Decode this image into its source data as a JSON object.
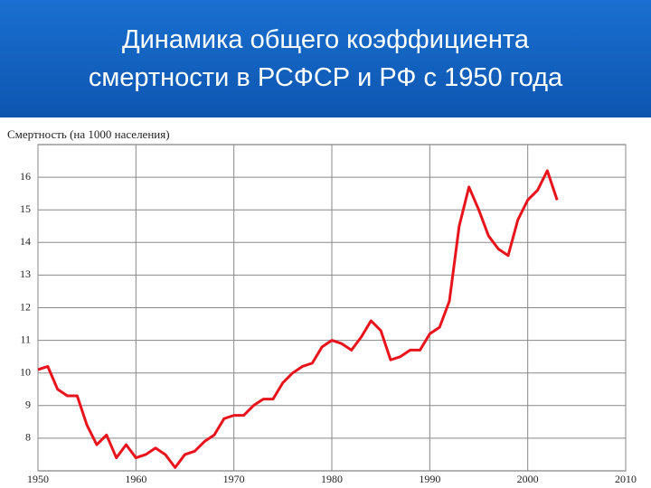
{
  "chart_data": {
    "type": "line",
    "title": [
      "Динамика общего коэффициента",
      "смертности в РСФСР и РФ с 1950 года"
    ],
    "y_label": "Смертность (на 1000 населения)",
    "x": [
      1950,
      1951,
      1952,
      1953,
      1954,
      1955,
      1956,
      1957,
      1958,
      1959,
      1960,
      1961,
      1962,
      1963,
      1964,
      1965,
      1966,
      1967,
      1968,
      1969,
      1970,
      1971,
      1972,
      1973,
      1974,
      1975,
      1976,
      1977,
      1978,
      1979,
      1980,
      1981,
      1982,
      1983,
      1984,
      1985,
      1986,
      1987,
      1988,
      1989,
      1990,
      1991,
      1992,
      1993,
      1994,
      1995,
      1996,
      1997,
      1998,
      1999,
      2000,
      2001,
      2002,
      2003
    ],
    "series": [
      {
        "color": "#e8141c",
        "values": [
          10.1,
          10.2,
          9.5,
          9.3,
          9.3,
          8.4,
          7.8,
          8.1,
          7.4,
          7.8,
          7.4,
          7.5,
          7.7,
          7.5,
          7.1,
          7.5,
          7.6,
          7.9,
          8.1,
          8.6,
          8.7,
          8.7,
          9.0,
          9.2,
          9.2,
          9.7,
          10.0,
          10.2,
          10.3,
          10.8,
          11.0,
          10.9,
          10.7,
          11.1,
          11.6,
          11.3,
          10.4,
          10.5,
          10.7,
          10.7,
          11.2,
          11.4,
          12.2,
          14.5,
          15.7,
          15.0,
          14.2,
          13.8,
          13.6,
          14.7,
          15.3,
          15.6,
          16.2,
          15.3
        ]
      }
    ],
    "xlim": [
      1950,
      2010
    ],
    "xticks": [
      1950,
      1960,
      1970,
      1980,
      1990,
      2000,
      2010
    ],
    "ylim": [
      7,
      17
    ],
    "yticks": [
      8,
      9,
      10,
      11,
      12,
      13,
      14,
      15,
      16
    ],
    "grid": true
  }
}
